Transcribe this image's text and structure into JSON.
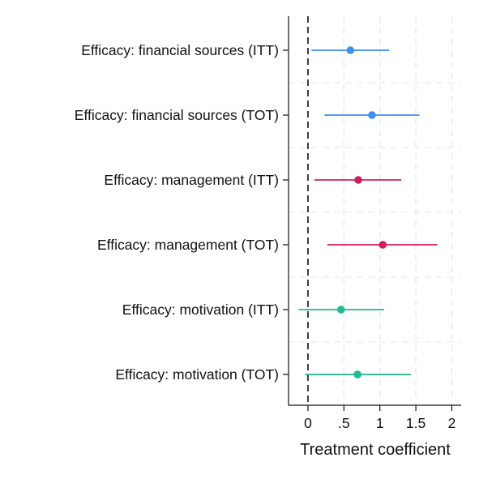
{
  "chart_data": {
    "type": "scatter",
    "title": "",
    "xlabel": "Treatment coefficient",
    "ylabel": "",
    "xlim": [
      -0.27,
      2.13
    ],
    "x_ticks": [
      {
        "value": 0,
        "label": "0"
      },
      {
        "value": 0.5,
        "label": ".5"
      },
      {
        "value": 1,
        "label": "1"
      },
      {
        "value": 1.5,
        "label": "1.5"
      },
      {
        "value": 2,
        "label": "2"
      }
    ],
    "reference_line": {
      "x": 0,
      "style": "dashed"
    },
    "grid": true,
    "series": [
      {
        "color": "#3d8ff0",
        "points": [
          {
            "label": "Efficacy: financial sources (ITT)",
            "estimate": 0.59,
            "ci_low": 0.05,
            "ci_high": 1.13
          },
          {
            "label": "Efficacy: financial sources (TOT)",
            "estimate": 0.89,
            "ci_low": 0.23,
            "ci_high": 1.55
          }
        ]
      },
      {
        "color": "#d21e5c",
        "points": [
          {
            "label": "Efficacy: management (ITT)",
            "estimate": 0.7,
            "ci_low": 0.09,
            "ci_high": 1.3
          },
          {
            "label": "Efficacy: management (TOT)",
            "estimate": 1.04,
            "ci_low": 0.27,
            "ci_high": 1.8
          }
        ]
      },
      {
        "color": "#1cbc8c",
        "points": [
          {
            "label": "Efficacy: motivation (ITT)",
            "estimate": 0.46,
            "ci_low": -0.13,
            "ci_high": 1.06
          },
          {
            "label": "Efficacy: motivation (TOT)",
            "estimate": 0.69,
            "ci_low": -0.04,
            "ci_high": 1.43
          }
        ]
      }
    ]
  }
}
